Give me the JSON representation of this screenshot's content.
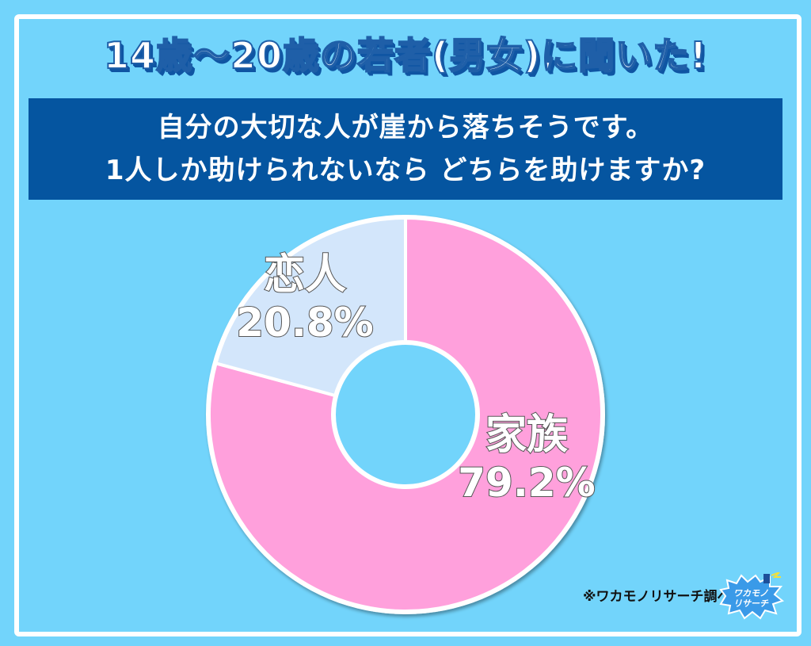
{
  "header": {
    "title": "14歳～20歳の若者(男女)に聞いた!"
  },
  "question": {
    "lines": [
      "自分の大切な人が崖から落ちそうです。",
      "1人しか助けられないなら どちらを助けますか?"
    ]
  },
  "colors": {
    "background": "#72d4fb",
    "frame": "#ffffff",
    "question_box": "#0555a0",
    "family_slice": "#ffa0dc",
    "lover_slice": "#d3e6fb",
    "title_shadow": "#0f55a3"
  },
  "chart_data": {
    "type": "pie",
    "variant": "donut",
    "title": "自分の大切な人が崖から落ちそうです。1人しか助けられないなら どちらを助けますか?",
    "categories": [
      "家族",
      "恋人"
    ],
    "values": [
      79.2,
      20.8
    ],
    "labels": [
      "家族 79.2%",
      "恋人 20.8%"
    ],
    "units": "%",
    "start_angle_deg": 0,
    "direction": "clockwise",
    "legend": "none (labels on slices)"
  },
  "labels": {
    "family": {
      "name": "家族",
      "pct": "79.2%"
    },
    "lover": {
      "name": "恋人",
      "pct": "20.8%"
    }
  },
  "footer": {
    "source": "※ワカモノリサーチ調べ",
    "logo_text_1": "ワカモノ",
    "logo_text_2": "リサーチ"
  }
}
